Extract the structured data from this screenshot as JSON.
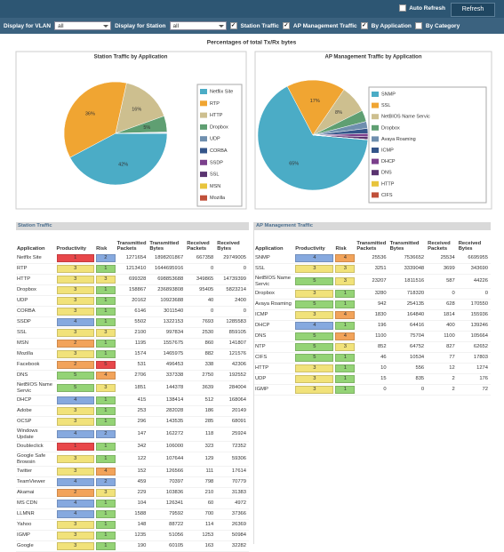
{
  "toolbar": {
    "auto_refresh": "Auto Refresh",
    "auto_refresh_checked": false,
    "refresh": "Refresh"
  },
  "filters": {
    "vlan_label": "Display for VLAN",
    "vlan_value": "all",
    "station_label": "Display for Station",
    "station_value": "all",
    "checkboxes": [
      "Station Traffic",
      "AP Management Traffic",
      "By Application",
      "By Category"
    ],
    "checked": [
      true,
      true,
      true,
      false
    ]
  },
  "heading": "Percentages of total Tx/Rx bytes",
  "chart_data": [
    {
      "type": "pie",
      "title": "Station Traffic by Application",
      "categories": [
        "Netflix Site",
        "RTP",
        "HTTP",
        "Dropbox",
        "UDP",
        "CORBA",
        "SSDP",
        "SSL",
        "MSN",
        "Mozilla"
      ],
      "values": [
        42,
        36,
        16,
        5,
        0.24,
        0.07,
        0.03,
        0.02,
        0.04,
        0.03
      ],
      "value_labels": [
        "42%",
        "36%",
        "16%",
        "5%",
        null,
        null,
        null,
        null,
        null,
        null
      ],
      "colors": [
        "#4bacc6",
        "#f0a532",
        "#cdbf8f",
        "#5f9f72",
        "#6f8fae",
        "#34558a",
        "#7b3f8c",
        "#5a3470",
        "#e8c43c",
        "#c0503a"
      ]
    },
    {
      "type": "pie",
      "title": "AP Management Traffic by Application",
      "categories": [
        "SNMP",
        "SSL",
        "NetBIOS Name Servic",
        "Dropbox",
        "Avaya Roaming",
        "ICMP",
        "DHCP",
        "DNS",
        "HTTP",
        "CIFS"
      ],
      "values": [
        65,
        17,
        8,
        3.3,
        2,
        1.5,
        0.9,
        0.8,
        0.01,
        0.1
      ],
      "value_labels": [
        "65%",
        "17%",
        "8%",
        null,
        null,
        null,
        null,
        null,
        null,
        null
      ],
      "colors": [
        "#4bacc6",
        "#f0a532",
        "#cdbf8f",
        "#5f9f72",
        "#6f8fae",
        "#34558a",
        "#7b3f8c",
        "#5a3470",
        "#e8c43c",
        "#c0503a"
      ]
    }
  ],
  "tables": [
    {
      "title": "Station Traffic",
      "columns": [
        "Application",
        "Productivity",
        "Risk",
        "Transmitted Packets",
        "Transmitted Bytes",
        "Received Packets",
        "Received Bytes"
      ],
      "rows": [
        [
          "Netflix Site",
          1,
          2,
          1271654,
          1898201867,
          667358,
          29749005
        ],
        [
          "RTP",
          3,
          1,
          1213410,
          1644695916,
          0,
          0
        ],
        [
          "HTTP",
          3,
          3,
          699328,
          698853688,
          349865,
          14739399
        ],
        [
          "Dropbox",
          3,
          1,
          158867,
          236893808,
          95405,
          5823214
        ],
        [
          "UDP",
          3,
          1,
          20162,
          10923688,
          40,
          2400
        ],
        [
          "CORBA",
          3,
          1,
          6146,
          3011540,
          0,
          0
        ],
        [
          "SSDP",
          4,
          1,
          5502,
          1322153,
          7693,
          1285583
        ],
        [
          "SSL",
          3,
          3,
          2100,
          997834,
          2530,
          859105
        ],
        [
          "MSN",
          2,
          1,
          1195,
          1557675,
          860,
          141807
        ],
        [
          "Mozilla",
          3,
          1,
          1574,
          1465975,
          882,
          121576
        ],
        [
          "Facebook",
          2,
          5,
          531,
          496453,
          338,
          42306
        ],
        [
          "DNS",
          5,
          4,
          2706,
          337338,
          2750,
          192552
        ],
        [
          "NetBIOS Name Servic",
          5,
          3,
          1851,
          144378,
          3639,
          284004
        ],
        [
          "DHCP",
          4,
          1,
          415,
          138414,
          512,
          168064
        ],
        [
          "Adobe",
          3,
          1,
          253,
          282028,
          186,
          20149
        ],
        [
          "OCSP",
          3,
          1,
          296,
          143535,
          285,
          68091
        ],
        [
          "Windows Update",
          4,
          2,
          147,
          162272,
          118,
          25924
        ],
        [
          "Doubleclick",
          1,
          1,
          342,
          106000,
          323,
          72352
        ],
        [
          "Google Safe Browsin",
          3,
          1,
          122,
          107644,
          129,
          59306
        ],
        [
          "Twitter",
          3,
          4,
          152,
          126566,
          111,
          17614
        ],
        [
          "TeamViewer",
          4,
          2,
          459,
          70397,
          798,
          70779
        ],
        [
          "Akamai",
          2,
          3,
          229,
          103836,
          210,
          31383
        ],
        [
          "MS CDN",
          4,
          1,
          104,
          126341,
          60,
          4972
        ],
        [
          "LLMNR",
          4,
          1,
          1588,
          79592,
          700,
          37366
        ],
        [
          "Yahoo",
          3,
          1,
          148,
          88722,
          114,
          26369
        ],
        [
          "IGMP",
          3,
          1,
          1235,
          51056,
          1253,
          50984
        ],
        [
          "Google",
          3,
          1,
          190,
          60105,
          163,
          32282
        ]
      ]
    },
    {
      "title": "AP Management Traffic",
      "columns": [
        "Application",
        "Productivity",
        "Risk",
        "Transmitted Packets",
        "Transmitted Bytes",
        "Received Packets",
        "Received Bytes"
      ],
      "rows": [
        [
          "SNMP",
          4,
          4,
          25536,
          7536652,
          25534,
          6695955
        ],
        [
          "SSL",
          3,
          3,
          3251,
          3339048,
          3699,
          343690
        ],
        [
          "NetBIOS Name Servic",
          5,
          3,
          23207,
          1811516,
          587,
          44226
        ],
        [
          "Dropbox",
          3,
          1,
          3280,
          718320,
          0,
          0
        ],
        [
          "Avaya Roaming",
          5,
          1,
          942,
          254135,
          628,
          170550
        ],
        [
          "ICMP",
          3,
          4,
          1830,
          164840,
          1814,
          155936
        ],
        [
          "DHCP",
          4,
          1,
          196,
          64416,
          400,
          139246
        ],
        [
          "DNS",
          5,
          4,
          1100,
          75704,
          1100,
          105664
        ],
        [
          "NTP",
          5,
          3,
          852,
          64752,
          827,
          62652
        ],
        [
          "CIFS",
          5,
          1,
          46,
          10534,
          77,
          17803
        ],
        [
          "HTTP",
          3,
          1,
          10,
          556,
          12,
          1274
        ],
        [
          "UDP",
          3,
          1,
          15,
          835,
          2,
          176
        ],
        [
          "IGMP",
          3,
          1,
          0,
          0,
          2,
          72
        ]
      ]
    }
  ]
}
